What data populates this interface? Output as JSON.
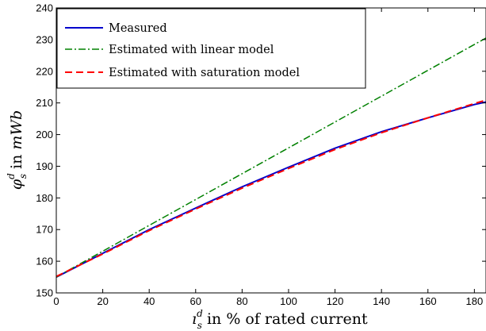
{
  "chart_data": {
    "type": "line",
    "xlabel": "i_s^d in % of rated current",
    "xlabel_parts": {
      "sym": "ı",
      "sub": "s",
      "sup": "d",
      "rest": " in % of rated current"
    },
    "ylabel": "φ_s^d in mWb",
    "ylabel_parts": {
      "sym": "φ",
      "sub": "s",
      "sup": "d",
      "mid": " in ",
      "unit": "mWb"
    },
    "xlim": [
      0,
      185
    ],
    "ylim": [
      150,
      240
    ],
    "xticks": [
      0,
      20,
      40,
      60,
      80,
      100,
      120,
      140,
      160,
      180
    ],
    "yticks": [
      150,
      160,
      170,
      180,
      190,
      200,
      210,
      220,
      230,
      240
    ],
    "grid": false,
    "legend_position": "top-left",
    "series": [
      {
        "name": "Measured",
        "color": "#0000cc",
        "style": "solid",
        "x": [
          0,
          20,
          40,
          60,
          80,
          100,
          120,
          140,
          160,
          180,
          185
        ],
        "y": [
          155.0,
          162.5,
          170.0,
          176.8,
          183.5,
          189.7,
          195.7,
          200.9,
          205.3,
          209.5,
          210.3
        ]
      },
      {
        "name": "Estimated with linear model",
        "color": "#008000",
        "style": "dashdot",
        "x": [
          0,
          185
        ],
        "y": [
          155.0,
          230.5
        ]
      },
      {
        "name": "Estimated with saturation model",
        "color": "#ff0000",
        "style": "dashed",
        "x": [
          0,
          20,
          40,
          60,
          80,
          100,
          120,
          140,
          160,
          180,
          185
        ],
        "y": [
          155.2,
          162.3,
          169.7,
          176.5,
          183.1,
          189.3,
          195.3,
          200.6,
          205.3,
          209.8,
          210.9
        ]
      }
    ]
  }
}
